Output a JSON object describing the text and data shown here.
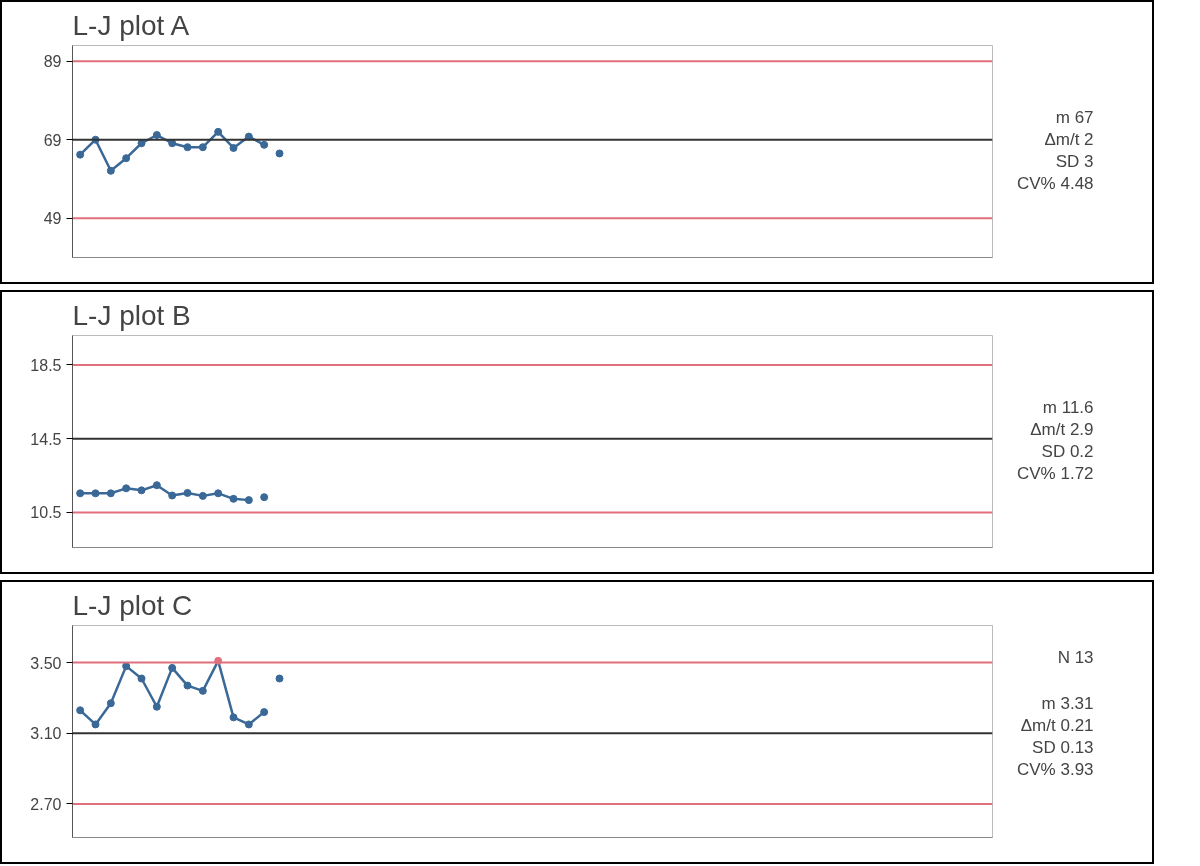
{
  "chart_data": [
    {
      "type": "line",
      "title": "L-J plot A",
      "marker": "circle",
      "tick_labels": "y",
      "grid": false,
      "ylim": [
        39,
        93
      ],
      "yticks": [
        49,
        69,
        89
      ],
      "categories": [
        null,
        null,
        null,
        null,
        null,
        null,
        null,
        null,
        null,
        null,
        null,
        null,
        null,
        null,
        null,
        null,
        null,
        null,
        null,
        null,
        null,
        null,
        null,
        null,
        null,
        null,
        null,
        null,
        null,
        null,
        null,
        null,
        null,
        null,
        null,
        null,
        null,
        null,
        null,
        null,
        null,
        null,
        null,
        null,
        null,
        null,
        null,
        null,
        null,
        null,
        null,
        null,
        null,
        null,
        null,
        null,
        null,
        null,
        null,
        null
      ],
      "series": [
        {
          "color": "#3a6897",
          "values": [
            65.2,
            69,
            61.1,
            64.3,
            68.1,
            70.2,
            68.1,
            67.1,
            67.1,
            71,
            66.9,
            69.8,
            67.7,
            null,
            null,
            null,
            null,
            null,
            null,
            null,
            null,
            null,
            null,
            null,
            null,
            null,
            null,
            null,
            null,
            null,
            null,
            null,
            null,
            null,
            null,
            null,
            null,
            null,
            null,
            null,
            null,
            null,
            null,
            null,
            null,
            null,
            null,
            null,
            null,
            null,
            null,
            null,
            null,
            null,
            null,
            null,
            null,
            null,
            null,
            null
          ]
        },
        {
          "type": "scatter",
          "color": "#3a6897",
          "values": [
            null,
            null,
            null,
            null,
            null,
            null,
            null,
            null,
            null,
            null,
            null,
            null,
            null,
            65.5,
            null,
            null,
            null,
            null,
            null,
            null,
            null,
            null,
            null,
            null,
            null,
            null,
            null,
            null,
            null,
            null,
            null,
            null,
            null,
            null,
            null,
            null,
            null,
            null,
            null,
            null,
            null,
            null,
            null,
            null,
            null,
            null,
            null,
            null,
            null,
            null,
            null,
            null,
            null,
            null,
            null,
            null,
            null,
            null,
            null,
            null
          ]
        }
      ],
      "ref_lines": [
        {
          "axis": "y",
          "value": 89,
          "color": "#e0707c"
        },
        {
          "axis": "y",
          "value": 69,
          "color": "#333333"
        },
        {
          "axis": "y",
          "value": 49,
          "color": "#e0707c"
        }
      ],
      "annotations": [
        "m 67",
        "Δm/t 2",
        "SD 3",
        "CV% 4.48"
      ]
    },
    {
      "type": "line",
      "title": "L-J plot B",
      "marker": "circle",
      "tick_labels": "y",
      "grid": false,
      "ylim": [
        8.6,
        20.1
      ],
      "yticks": [
        10.5,
        14.5,
        18.5
      ],
      "categories": [
        null,
        null,
        null,
        null,
        null,
        null,
        null,
        null,
        null,
        null,
        null,
        null,
        null,
        null,
        null,
        null,
        null,
        null,
        null,
        null,
        null,
        null,
        null,
        null,
        null,
        null,
        null,
        null,
        null,
        null,
        null,
        null,
        null,
        null,
        null,
        null,
        null,
        null,
        null,
        null,
        null,
        null,
        null,
        null,
        null,
        null,
        null,
        null,
        null,
        null,
        null,
        null,
        null,
        null,
        null,
        null,
        null,
        null,
        null,
        null
      ],
      "series": [
        {
          "color": "#3a6897",
          "values": [
            11.54,
            11.54,
            11.54,
            11.81,
            11.7,
            11.98,
            11.42,
            11.56,
            11.4,
            11.54,
            11.24,
            11.17,
            null,
            null,
            null,
            null,
            null,
            null,
            null,
            null,
            null,
            null,
            null,
            null,
            null,
            null,
            null,
            null,
            null,
            null,
            null,
            null,
            null,
            null,
            null,
            null,
            null,
            null,
            null,
            null,
            null,
            null,
            null,
            null,
            null,
            null,
            null,
            null,
            null,
            null,
            null,
            null,
            null,
            null,
            null,
            null,
            null,
            null,
            null,
            null
          ]
        },
        {
          "type": "scatter",
          "color": "#3a6897",
          "values": [
            null,
            null,
            null,
            null,
            null,
            null,
            null,
            null,
            null,
            null,
            null,
            null,
            11.33,
            null,
            null,
            null,
            null,
            null,
            null,
            null,
            null,
            null,
            null,
            null,
            null,
            null,
            null,
            null,
            null,
            null,
            null,
            null,
            null,
            null,
            null,
            null,
            null,
            null,
            null,
            null,
            null,
            null,
            null,
            null,
            null,
            null,
            null,
            null,
            null,
            null,
            null,
            null,
            null,
            null,
            null,
            null,
            null,
            null,
            null,
            null
          ]
        }
      ],
      "ref_lines": [
        {
          "axis": "y",
          "value": 18.5,
          "color": "#e0707c"
        },
        {
          "axis": "y",
          "value": 14.5,
          "color": "#333333"
        },
        {
          "axis": "y",
          "value": 10.5,
          "color": "#e0707c"
        }
      ],
      "annotations": [
        "m 11.6",
        "Δm/t 2.9",
        "SD 0.2",
        "CV% 1.72"
      ]
    },
    {
      "type": "line",
      "title": "L-J plot C",
      "marker": "circle",
      "tick_labels": "y",
      "grid": false,
      "ylim": [
        2.51,
        3.71
      ],
      "yticks": [
        {
          "value": 2.7,
          "label": "2.70"
        },
        {
          "value": 3.1,
          "label": "3.10"
        },
        {
          "value": 3.5,
          "label": "3.50"
        }
      ],
      "categories": [
        null,
        null,
        null,
        null,
        null,
        null,
        null,
        null,
        null,
        null,
        null,
        null,
        null,
        null,
        null,
        null,
        null,
        null,
        null,
        null,
        null,
        null,
        null,
        null,
        null,
        null,
        null,
        null,
        null,
        null,
        null,
        null,
        null,
        null,
        null,
        null,
        null,
        null,
        null,
        null,
        null,
        null,
        null,
        null,
        null,
        null,
        null,
        null,
        null,
        null,
        null,
        null,
        null,
        null,
        null,
        null,
        null,
        null,
        null,
        null
      ],
      "series": [
        {
          "color": "#3a6897",
          "values": [
            3.23,
            3.15,
            3.27,
            3.48,
            3.41,
            3.25,
            3.47,
            3.37,
            3.34,
            3.51,
            3.19,
            3.15,
            3.22,
            null,
            null,
            null,
            null,
            null,
            null,
            null,
            null,
            null,
            null,
            null,
            null,
            null,
            null,
            null,
            null,
            null,
            null,
            null,
            null,
            null,
            null,
            null,
            null,
            null,
            null,
            null,
            null,
            null,
            null,
            null,
            null,
            null,
            null,
            null,
            null,
            null,
            null,
            null,
            null,
            null,
            null,
            null,
            null,
            null,
            null,
            null
          ],
          "colors": [
            "#3a6897",
            "#3a6897",
            "#3a6897",
            "#3a6897",
            "#3a6897",
            "#3a6897",
            "#3a6897",
            "#3a6897",
            "#3a6897",
            "#e0707c",
            "#3a6897",
            "#3a6897",
            "#3a6897",
            null,
            null,
            null,
            null,
            null,
            null,
            null,
            null,
            null,
            null,
            null,
            null,
            null,
            null,
            null,
            null,
            null,
            null,
            null,
            null,
            null,
            null,
            null,
            null,
            null,
            null,
            null,
            null,
            null,
            null,
            null,
            null,
            null,
            null,
            null,
            null,
            null,
            null,
            null,
            null,
            null,
            null,
            null,
            null,
            null,
            null,
            null
          ]
        },
        {
          "type": "scatter",
          "color": "#3a6897",
          "values": [
            null,
            null,
            null,
            null,
            null,
            null,
            null,
            null,
            null,
            null,
            null,
            null,
            null,
            3.41,
            null,
            null,
            null,
            null,
            null,
            null,
            null,
            null,
            null,
            null,
            null,
            null,
            null,
            null,
            null,
            null,
            null,
            null,
            null,
            null,
            null,
            null,
            null,
            null,
            null,
            null,
            null,
            null,
            null,
            null,
            null,
            null,
            null,
            null,
            null,
            null,
            null,
            null,
            null,
            null,
            null,
            null,
            null,
            null,
            null,
            null
          ]
        }
      ],
      "ref_lines": [
        {
          "axis": "y",
          "value": 3.5,
          "color": "#e0707c"
        },
        {
          "axis": "y",
          "value": 3.1,
          "color": "#333333"
        },
        {
          "axis": "y",
          "value": 2.7,
          "color": "#e0707c"
        }
      ],
      "annotations": [
        "N 13",
        "m 3.31",
        "Δm/t 0.21",
        "SD 0.13",
        "CV% 3.93"
      ]
    }
  ]
}
